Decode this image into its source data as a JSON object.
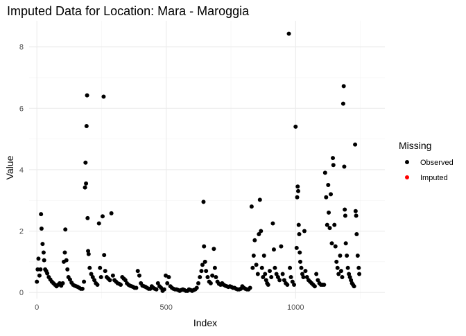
{
  "chart_data": {
    "type": "scatter",
    "title": "Imputed Data for Location: Mara - Maroggia",
    "xlabel": "Index",
    "ylabel": "Value",
    "xlim": [
      -30,
      1345
    ],
    "ylim": [
      -0.2,
      8.85
    ],
    "x_ticks": [
      0,
      500,
      1000
    ],
    "y_ticks": [
      0,
      2,
      4,
      6,
      8
    ],
    "grid": true,
    "legend": {
      "title": "Missing",
      "placement": "right",
      "entries": [
        {
          "name": "Observed",
          "color": "#000000"
        },
        {
          "name": "Imputed",
          "color": "#ff0000"
        }
      ]
    },
    "series": [
      {
        "name": "Observed",
        "color": "#000000",
        "points": [
          [
            0,
            0.35
          ],
          [
            3,
            0.75
          ],
          [
            6,
            1.1
          ],
          [
            10,
            0.55
          ],
          [
            14,
            0.75
          ],
          [
            16,
            2.55
          ],
          [
            18,
            2.08
          ],
          [
            22,
            1.58
          ],
          [
            26,
            1.3
          ],
          [
            28,
            1.05
          ],
          [
            32,
            0.75
          ],
          [
            36,
            0.7
          ],
          [
            40,
            0.62
          ],
          [
            46,
            0.5
          ],
          [
            52,
            0.42
          ],
          [
            58,
            0.35
          ],
          [
            64,
            0.3
          ],
          [
            70,
            0.25
          ],
          [
            76,
            0.2
          ],
          [
            82,
            0.25
          ],
          [
            88,
            0.3
          ],
          [
            94,
            0.22
          ],
          [
            100,
            0.3
          ],
          [
            104,
            1.0
          ],
          [
            108,
            1.3
          ],
          [
            110,
            2.05
          ],
          [
            114,
            1.05
          ],
          [
            118,
            0.75
          ],
          [
            122,
            0.5
          ],
          [
            128,
            0.42
          ],
          [
            134,
            0.32
          ],
          [
            140,
            0.25
          ],
          [
            146,
            0.22
          ],
          [
            152,
            0.2
          ],
          [
            158,
            0.18
          ],
          [
            164,
            0.15
          ],
          [
            170,
            0.12
          ],
          [
            176,
            0.12
          ],
          [
            182,
            0.35
          ],
          [
            186,
            3.42
          ],
          [
            188,
            4.23
          ],
          [
            190,
            3.55
          ],
          [
            192,
            5.42
          ],
          [
            194,
            6.42
          ],
          [
            196,
            2.42
          ],
          [
            198,
            1.35
          ],
          [
            200,
            1.25
          ],
          [
            204,
            0.8
          ],
          [
            210,
            0.6
          ],
          [
            216,
            0.5
          ],
          [
            222,
            0.4
          ],
          [
            228,
            0.3
          ],
          [
            234,
            0.25
          ],
          [
            240,
            2.25
          ],
          [
            244,
            0.8
          ],
          [
            248,
            0.5
          ],
          [
            254,
            2.48
          ],
          [
            258,
            6.38
          ],
          [
            260,
            1.22
          ],
          [
            264,
            0.7
          ],
          [
            270,
            0.5
          ],
          [
            276,
            0.45
          ],
          [
            282,
            0.4
          ],
          [
            288,
            2.58
          ],
          [
            294,
            0.55
          ],
          [
            300,
            0.4
          ],
          [
            306,
            0.35
          ],
          [
            312,
            0.3
          ],
          [
            318,
            0.28
          ],
          [
            324,
            0.25
          ],
          [
            330,
            0.5
          ],
          [
            336,
            0.45
          ],
          [
            342,
            0.4
          ],
          [
            348,
            0.3
          ],
          [
            354,
            0.25
          ],
          [
            360,
            0.22
          ],
          [
            366,
            0.2
          ],
          [
            372,
            0.18
          ],
          [
            378,
            0.15
          ],
          [
            384,
            0.15
          ],
          [
            390,
            0.7
          ],
          [
            396,
            0.55
          ],
          [
            402,
            0.3
          ],
          [
            408,
            0.22
          ],
          [
            414,
            0.2
          ],
          [
            420,
            0.18
          ],
          [
            426,
            0.15
          ],
          [
            432,
            0.12
          ],
          [
            438,
            0.12
          ],
          [
            444,
            0.2
          ],
          [
            450,
            0.15
          ],
          [
            456,
            0.12
          ],
          [
            462,
            0.1
          ],
          [
            468,
            0.3
          ],
          [
            474,
            0.2
          ],
          [
            480,
            0.15
          ],
          [
            486,
            0.05
          ],
          [
            492,
            0.1
          ],
          [
            498,
            0.55
          ],
          [
            504,
            0.3
          ],
          [
            510,
            0.5
          ],
          [
            516,
            0.2
          ],
          [
            522,
            0.15
          ],
          [
            528,
            0.12
          ],
          [
            534,
            0.1
          ],
          [
            540,
            0.1
          ],
          [
            546,
            0.08
          ],
          [
            552,
            0.05
          ],
          [
            558,
            0.08
          ],
          [
            564,
            0.1
          ],
          [
            570,
            0.08
          ],
          [
            576,
            0.05
          ],
          [
            582,
            0.05
          ],
          [
            588,
            0.1
          ],
          [
            594,
            0.08
          ],
          [
            600,
            0.05
          ],
          [
            606,
            0.08
          ],
          [
            612,
            0.1
          ],
          [
            618,
            0.15
          ],
          [
            624,
            0.3
          ],
          [
            630,
            0.5
          ],
          [
            636,
            0.7
          ],
          [
            640,
            0.9
          ],
          [
            644,
            2.95
          ],
          [
            646,
            1.5
          ],
          [
            650,
            1.0
          ],
          [
            654,
            0.7
          ],
          [
            660,
            0.5
          ],
          [
            666,
            0.35
          ],
          [
            672,
            0.3
          ],
          [
            678,
            0.55
          ],
          [
            684,
            1.42
          ],
          [
            688,
            0.8
          ],
          [
            692,
            0.5
          ],
          [
            698,
            0.35
          ],
          [
            704,
            0.28
          ],
          [
            710,
            0.25
          ],
          [
            716,
            0.3
          ],
          [
            722,
            0.25
          ],
          [
            728,
            0.22
          ],
          [
            734,
            0.2
          ],
          [
            740,
            0.18
          ],
          [
            746,
            0.2
          ],
          [
            752,
            0.18
          ],
          [
            758,
            0.15
          ],
          [
            764,
            0.15
          ],
          [
            770,
            0.12
          ],
          [
            776,
            0.1
          ],
          [
            782,
            0.1
          ],
          [
            788,
            0.12
          ],
          [
            794,
            0.2
          ],
          [
            800,
            0.15
          ],
          [
            806,
            0.12
          ],
          [
            812,
            0.1
          ],
          [
            818,
            0.1
          ],
          [
            824,
            0.15
          ],
          [
            830,
            2.8
          ],
          [
            834,
            0.8
          ],
          [
            838,
            1.2
          ],
          [
            842,
            1.7
          ],
          [
            848,
            0.9
          ],
          [
            854,
            0.6
          ],
          [
            858,
            1.9
          ],
          [
            862,
            3.02
          ],
          [
            866,
            2.0
          ],
          [
            870,
            0.8
          ],
          [
            874,
            0.5
          ],
          [
            878,
            1.2
          ],
          [
            882,
            0.6
          ],
          [
            886,
            0.4
          ],
          [
            890,
            0.3
          ],
          [
            894,
            0.25
          ],
          [
            900,
            0.7
          ],
          [
            906,
            0.5
          ],
          [
            912,
            2.25
          ],
          [
            916,
            1.4
          ],
          [
            920,
            0.8
          ],
          [
            926,
            0.6
          ],
          [
            932,
            0.5
          ],
          [
            938,
            0.4
          ],
          [
            944,
            1.5
          ],
          [
            950,
            0.6
          ],
          [
            956,
            0.4
          ],
          [
            962,
            0.3
          ],
          [
            968,
            0.25
          ],
          [
            974,
            8.43
          ],
          [
            978,
            0.8
          ],
          [
            982,
            0.5
          ],
          [
            988,
            0.35
          ],
          [
            994,
            0.25
          ],
          [
            1000,
            5.4
          ],
          [
            1004,
            1.45
          ],
          [
            1006,
            3.1
          ],
          [
            1008,
            3.45
          ],
          [
            1010,
            3.3
          ],
          [
            1012,
            2.2
          ],
          [
            1014,
            1.9
          ],
          [
            1016,
            1.3
          ],
          [
            1018,
            1.0
          ],
          [
            1022,
            0.8
          ],
          [
            1026,
            0.6
          ],
          [
            1030,
            0.5
          ],
          [
            1034,
            2.0
          ],
          [
            1038,
            0.7
          ],
          [
            1044,
            0.5
          ],
          [
            1050,
            0.4
          ],
          [
            1056,
            0.35
          ],
          [
            1062,
            0.3
          ],
          [
            1068,
            0.25
          ],
          [
            1074,
            0.2
          ],
          [
            1080,
            0.6
          ],
          [
            1086,
            0.4
          ],
          [
            1092,
            0.3
          ],
          [
            1098,
            0.25
          ],
          [
            1104,
            0.25
          ],
          [
            1110,
            0.25
          ],
          [
            1114,
            3.9
          ],
          [
            1118,
            3.1
          ],
          [
            1122,
            2.2
          ],
          [
            1126,
            3.5
          ],
          [
            1128,
            2.6
          ],
          [
            1132,
            2.1
          ],
          [
            1136,
            3.2
          ],
          [
            1140,
            1.6
          ],
          [
            1144,
            4.38
          ],
          [
            1146,
            4.15
          ],
          [
            1150,
            2.2
          ],
          [
            1154,
            1.5
          ],
          [
            1158,
            1.0
          ],
          [
            1162,
            0.8
          ],
          [
            1166,
            0.6
          ],
          [
            1172,
            1.2
          ],
          [
            1176,
            0.7
          ],
          [
            1180,
            0.5
          ],
          [
            1184,
            6.15
          ],
          [
            1186,
            6.72
          ],
          [
            1188,
            4.1
          ],
          [
            1190,
            2.7
          ],
          [
            1192,
            2.5
          ],
          [
            1194,
            1.6
          ],
          [
            1198,
            1.2
          ],
          [
            1202,
            0.8
          ],
          [
            1206,
            0.6
          ],
          [
            1210,
            0.5
          ],
          [
            1214,
            0.4
          ],
          [
            1218,
            0.3
          ],
          [
            1222,
            0.25
          ],
          [
            1226,
            0.2
          ],
          [
            1230,
            4.82
          ],
          [
            1232,
            2.65
          ],
          [
            1234,
            2.5
          ],
          [
            1236,
            1.9
          ],
          [
            1240,
            1.2
          ],
          [
            1244,
            0.8
          ],
          [
            1246,
            0.6
          ]
        ]
      },
      {
        "name": "Imputed",
        "color": "#ff0000",
        "points": []
      }
    ]
  }
}
